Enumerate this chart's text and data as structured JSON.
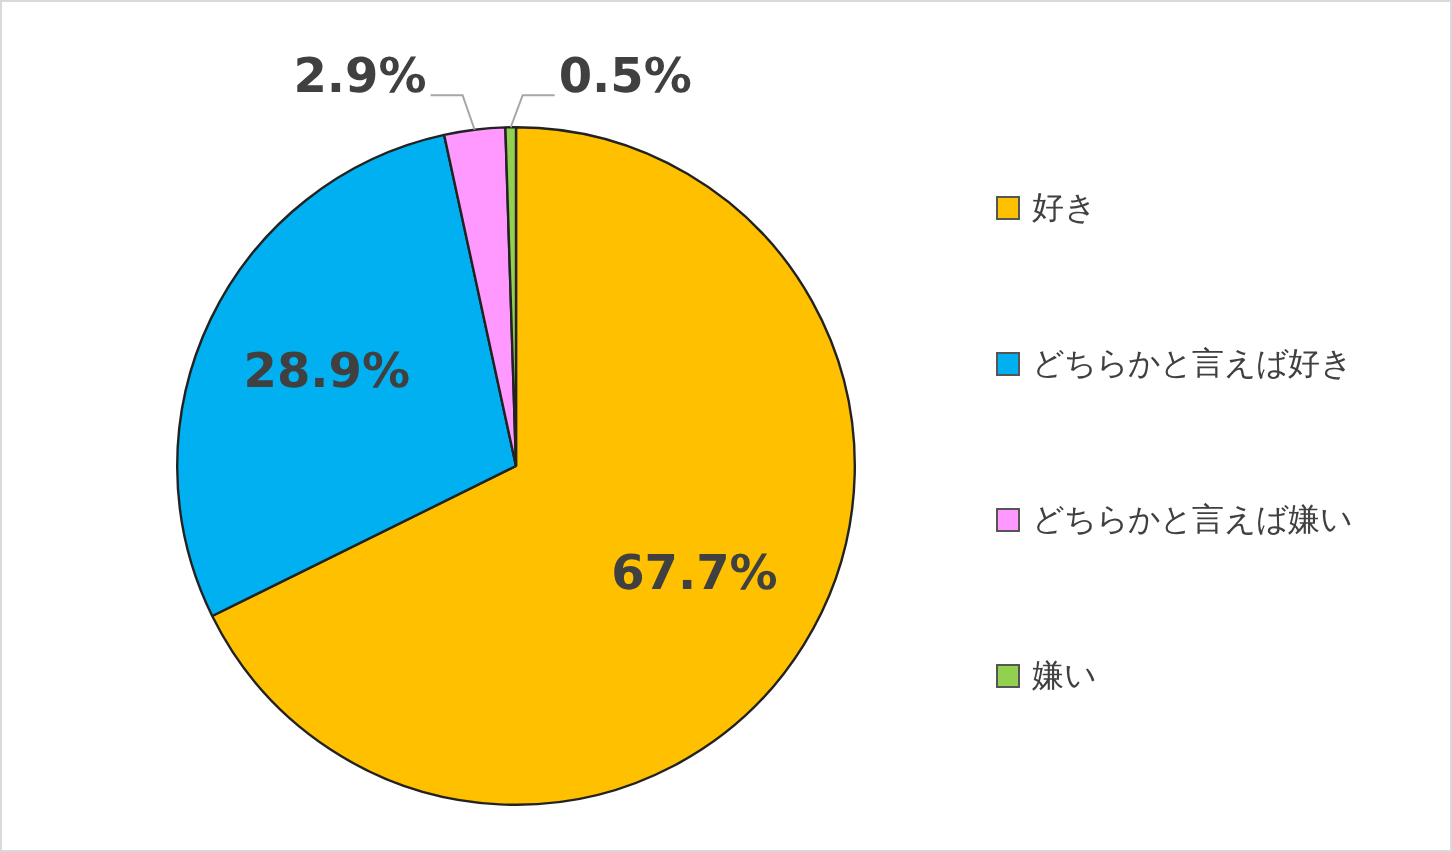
{
  "chart_data": {
    "type": "pie",
    "categories": [
      "好き",
      "どちらかと言えば好き",
      "どちらかと言えば嫌い",
      "嫌い"
    ],
    "values": [
      67.7,
      28.9,
      2.9,
      0.5
    ],
    "colors": [
      "#ffc000",
      "#00b0f0",
      "#ff99ff",
      "#92d050"
    ],
    "value_labels": [
      "67.7%",
      "28.9%",
      "2.9%",
      "0.5%"
    ],
    "legend": "right"
  }
}
